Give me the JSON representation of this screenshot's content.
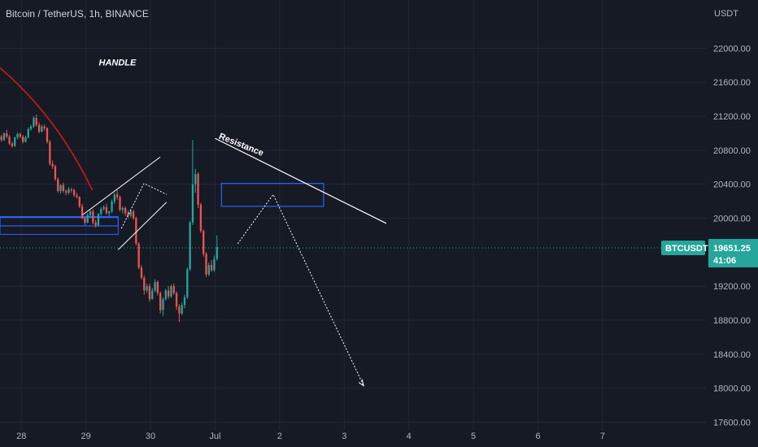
{
  "header": {
    "title": "Bitcoin / TetherUS, 1h, BINANCE"
  },
  "chart_data": {
    "type": "candlestick",
    "currency_label": "USDT",
    "ylim": [
      17500,
      22300
    ],
    "y_ticks": [
      "22000.00",
      "21600.00",
      "21200.00",
      "20800.00",
      "20400.00",
      "20000.00",
      "19200.00",
      "18800.00",
      "18400.00",
      "18000.00",
      "17600.00"
    ],
    "x_ticks": [
      "28",
      "29",
      "30",
      "Jul",
      "2",
      "3",
      "4",
      "5",
      "6",
      "7"
    ],
    "x_tick_days": [
      0,
      1,
      2,
      3,
      4,
      5,
      6,
      7,
      8,
      9
    ],
    "xlim_days": [
      -0.33,
      10.6
    ],
    "last_price": {
      "symbol": "BTCUSDT",
      "price": "19651.25",
      "price_value": 19651.25,
      "countdown": "41:06"
    },
    "annotations": {
      "handle_label": "HANDLE",
      "resistance_label": "Resistance"
    },
    "colors": {
      "up": "#26a69a",
      "down": "#ef5350",
      "curve": "#b71c1c",
      "zone": "#2962ff",
      "price_tag": "#26a69a"
    },
    "candles": [
      [
        20960,
        20920,
        20980,
        20900
      ],
      [
        20920,
        21000,
        21010,
        20910
      ],
      [
        21000,
        20960,
        21040,
        20940
      ],
      [
        20960,
        20880,
        20980,
        20860
      ],
      [
        20880,
        20850,
        20900,
        20830
      ],
      [
        20850,
        20950,
        20960,
        20840
      ],
      [
        20950,
        20990,
        21010,
        20930
      ],
      [
        20990,
        20960,
        21010,
        20940
      ],
      [
        20960,
        20900,
        20980,
        20880
      ],
      [
        20900,
        20950,
        20970,
        20890
      ],
      [
        20950,
        21050,
        21070,
        20940
      ],
      [
        21050,
        21080,
        21100,
        21030
      ],
      [
        21080,
        21180,
        21200,
        21060
      ],
      [
        21180,
        21100,
        21220,
        21080
      ],
      [
        21100,
        21020,
        21130,
        21000
      ],
      [
        21020,
        21080,
        21100,
        21010
      ],
      [
        21080,
        21060,
        21100,
        21030
      ],
      [
        21060,
        20900,
        21070,
        20880
      ],
      [
        20900,
        20640,
        20920,
        20620
      ],
      [
        20640,
        20610,
        20680,
        20580
      ],
      [
        20610,
        20460,
        20630,
        20440
      ],
      [
        20460,
        20320,
        20480,
        20300
      ],
      [
        20320,
        20390,
        20400,
        20290
      ],
      [
        20390,
        20320,
        20420,
        20300
      ],
      [
        20320,
        20300,
        20340,
        20270
      ],
      [
        20300,
        20340,
        20370,
        20280
      ],
      [
        20340,
        20330,
        20360,
        20300
      ],
      [
        20330,
        20270,
        20350,
        20250
      ],
      [
        20270,
        20250,
        20300,
        20230
      ],
      [
        20250,
        20140,
        20260,
        20120
      ],
      [
        20140,
        20000,
        20170,
        19990
      ],
      [
        20000,
        19950,
        20020,
        19920
      ],
      [
        19950,
        20040,
        20060,
        19940
      ],
      [
        20040,
        20080,
        20100,
        20010
      ],
      [
        20080,
        19950,
        20110,
        19930
      ],
      [
        19950,
        19920,
        19980,
        19890
      ],
      [
        19920,
        20050,
        20060,
        19900
      ],
      [
        20050,
        20110,
        20130,
        20030
      ],
      [
        20110,
        20130,
        20150,
        20090
      ],
      [
        20130,
        20060,
        20170,
        20040
      ],
      [
        20060,
        20080,
        20090,
        20020
      ],
      [
        20080,
        20200,
        20220,
        20060
      ],
      [
        20200,
        20280,
        20300,
        20170
      ],
      [
        20280,
        20250,
        20330,
        20220
      ],
      [
        20250,
        20100,
        20270,
        20080
      ],
      [
        20100,
        20120,
        20140,
        20060
      ],
      [
        20120,
        20060,
        20140,
        20030
      ],
      [
        20060,
        20030,
        20090,
        20000
      ],
      [
        20030,
        20080,
        20110,
        20010
      ],
      [
        20080,
        20000,
        20100,
        19980
      ],
      [
        20000,
        19700,
        20020,
        19680
      ],
      [
        19700,
        19420,
        19720,
        19400
      ],
      [
        19420,
        19300,
        19450,
        19280
      ],
      [
        19300,
        19150,
        19330,
        19100
      ],
      [
        19150,
        19200,
        19230,
        19120
      ],
      [
        19200,
        19050,
        19230,
        19020
      ],
      [
        19050,
        19150,
        19180,
        19040
      ],
      [
        19150,
        19250,
        19280,
        19130
      ],
      [
        19250,
        19120,
        19270,
        19090
      ],
      [
        19120,
        18920,
        19140,
        18880
      ],
      [
        18920,
        19050,
        19070,
        18850
      ],
      [
        19050,
        19150,
        19170,
        19030
      ],
      [
        19150,
        19080,
        19200,
        19050
      ],
      [
        19080,
        19200,
        19220,
        19060
      ],
      [
        19200,
        19120,
        19230,
        19100
      ],
      [
        19120,
        18960,
        19140,
        18920
      ],
      [
        18960,
        18880,
        18990,
        18780
      ],
      [
        18880,
        18980,
        19010,
        18860
      ],
      [
        18980,
        19070,
        19100,
        18940
      ],
      [
        19070,
        19400,
        19420,
        19050
      ],
      [
        19400,
        19950,
        19970,
        19380
      ],
      [
        19950,
        20400,
        20920,
        19920
      ],
      [
        20400,
        20520,
        20580,
        20300
      ],
      [
        20520,
        20160,
        20540,
        20120
      ],
      [
        20160,
        19850,
        20180,
        19830
      ],
      [
        19850,
        19580,
        19870,
        19550
      ],
      [
        19580,
        19340,
        19600,
        19310
      ],
      [
        19340,
        19450,
        19480,
        19320
      ],
      [
        19450,
        19390,
        19510,
        19370
      ],
      [
        19390,
        19520,
        19560,
        19370
      ],
      [
        19520,
        19660,
        19800,
        19500
      ]
    ]
  }
}
